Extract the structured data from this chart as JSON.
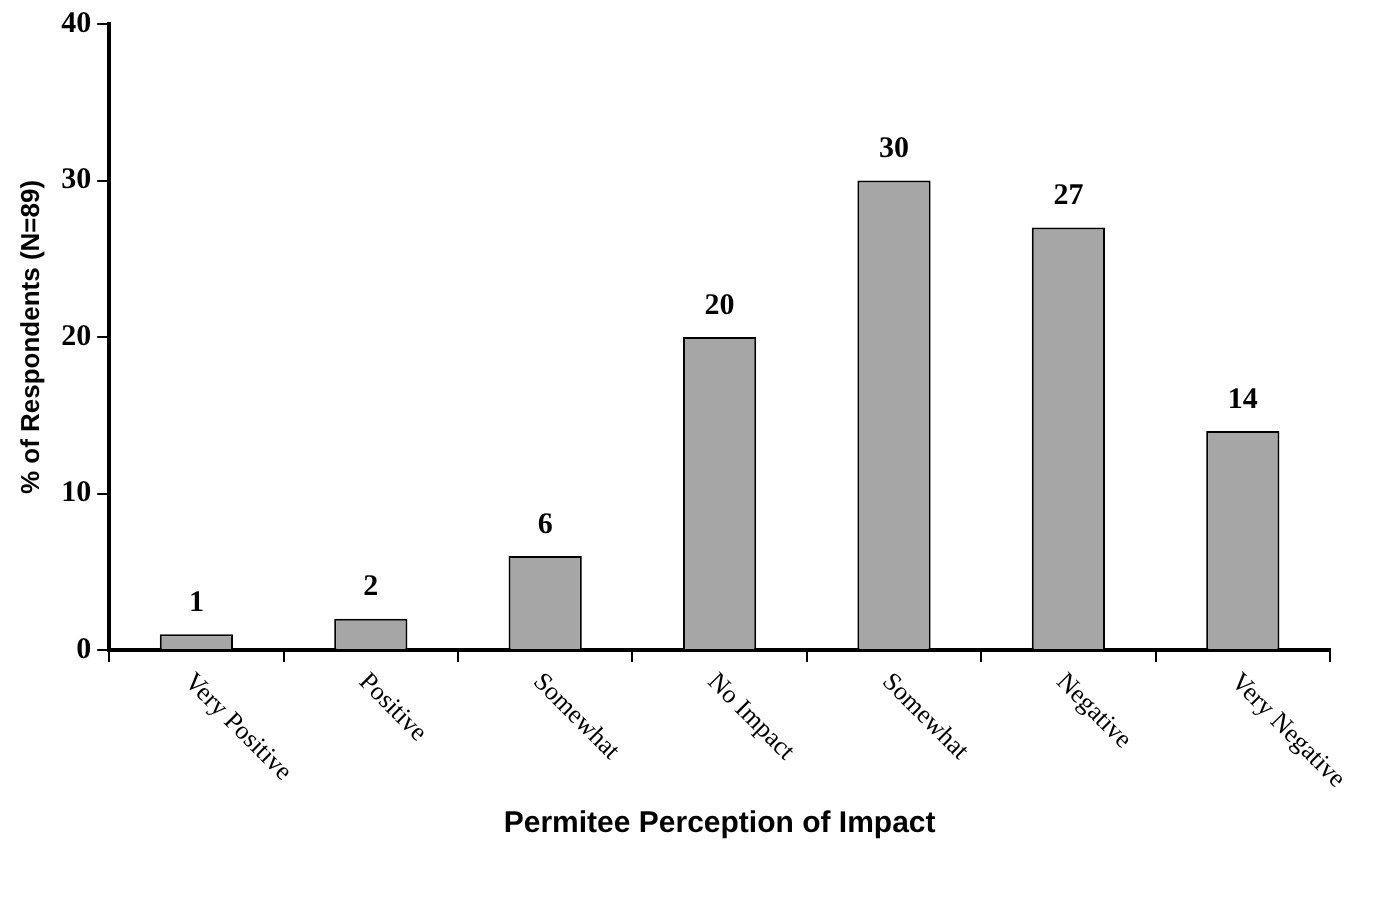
{
  "chart_data": {
    "type": "bar",
    "xlabel": "Permitee Perception of Impact",
    "ylabel": "% of Respondents (N=89)",
    "categories": [
      "Very Positive",
      "Positive",
      "Somewhat",
      "No Impact",
      "Somewhat",
      "Negative",
      "Very Negative"
    ],
    "values": [
      1,
      2,
      6,
      20,
      30,
      27,
      14
    ],
    "color": "#a6a6a6",
    "ylim": [
      0,
      40
    ],
    "yticks": [
      0,
      10,
      20,
      30,
      40
    ],
    "grid": false,
    "legend": false,
    "data_labels": true
  }
}
